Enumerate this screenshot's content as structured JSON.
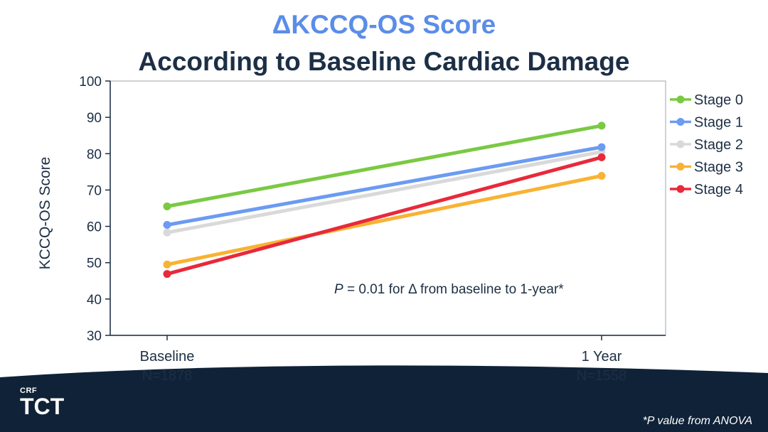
{
  "title": {
    "line1": "ΔKCCQ-OS Score",
    "line2": "According to Baseline Cardiac Damage"
  },
  "chart_data": {
    "type": "line",
    "ylabel": "KCCQ-OS Score",
    "ylim": [
      30,
      100
    ],
    "yticks": [
      30,
      40,
      50,
      60,
      70,
      80,
      90,
      100
    ],
    "grid": false,
    "legend_position": "right",
    "categories": [
      {
        "line1": "Baseline",
        "line2": "N=1878"
      },
      {
        "line1": "1 Year",
        "line2": "N=1558"
      }
    ],
    "series": [
      {
        "name": "Stage 0",
        "color": "#7ac943",
        "values": [
          65.5,
          87.7
        ]
      },
      {
        "name": "Stage 1",
        "color": "#6b9bf2",
        "values": [
          60.4,
          81.8
        ]
      },
      {
        "name": "Stage 2",
        "color": "#d9d9d9",
        "values": [
          58.3,
          80.5
        ]
      },
      {
        "name": "Stage 3",
        "color": "#f9b233",
        "values": [
          49.5,
          73.9
        ]
      },
      {
        "name": "Stage 4",
        "color": "#e8293a",
        "values": [
          46.9,
          79.0
        ]
      }
    ],
    "annotation": {
      "p_label": "P",
      "rest": " = 0.01 for Δ from baseline to 1-year*"
    }
  },
  "footer": {
    "note": "*P value from ANOVA",
    "logo_top": "CRF",
    "logo_main": "TCT"
  },
  "colors": {
    "title_accent": "#5b8de8",
    "title_dark": "#1c2f45",
    "footer_band": "#0f2238"
  }
}
